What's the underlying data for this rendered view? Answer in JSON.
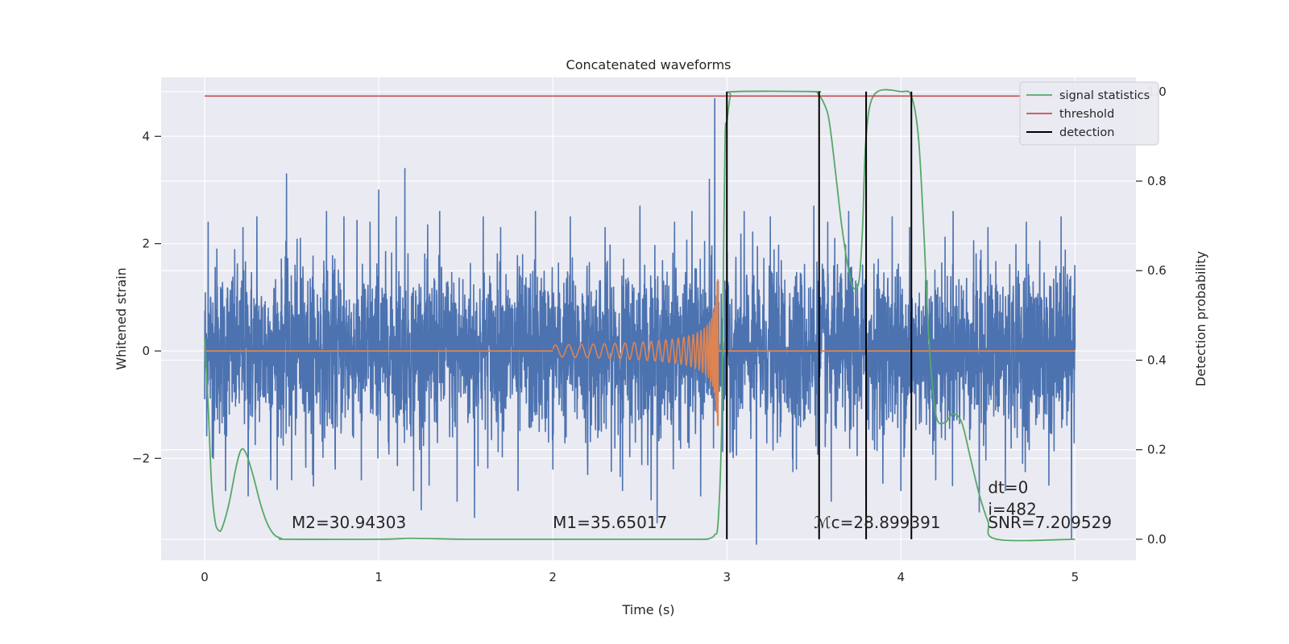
{
  "chart_data": {
    "type": "line",
    "title": "Concatenated waveforms",
    "xlabel": "Time (s)",
    "ylabel": "Whitened strain",
    "y2label": "Detection probability",
    "xlim": [
      -0.25,
      5.35
    ],
    "ylim": [
      -3.9,
      5.1
    ],
    "y2lim": [
      -0.047,
      1.032
    ],
    "x_ticks": [
      0,
      1,
      2,
      3,
      4,
      5
    ],
    "x_tick_labels": [
      "0",
      "1",
      "2",
      "3",
      "4",
      "5"
    ],
    "y_ticks": [
      -2,
      0,
      2,
      4
    ],
    "y_tick_labels": [
      "−2",
      "0",
      "2",
      "4"
    ],
    "y2_ticks": [
      0.0,
      0.2,
      0.4,
      0.6,
      0.8,
      1.0
    ],
    "y2_tick_labels": [
      "0.0",
      "0.2",
      "0.4",
      "0.6",
      "0.8",
      "1.0"
    ],
    "grid": true,
    "legend_placement": "top-right",
    "background": "#eaeaf2",
    "colors": {
      "strain": "#4c72b0",
      "template": "#dd8452",
      "signal_statistics": "#55a868",
      "threshold": "#c44e52",
      "detection": "#000000"
    },
    "series": [
      {
        "name": "signal statistics",
        "axis": "right",
        "x": [
          0.0,
          0.02,
          0.04,
          0.06,
          0.08,
          0.1,
          0.14,
          0.18,
          0.21,
          0.24,
          0.28,
          0.32,
          0.36,
          0.4,
          0.44,
          0.48,
          1.0,
          1.2,
          1.5,
          2.0,
          2.5,
          2.85,
          2.9,
          2.93,
          2.95,
          2.97,
          2.98,
          2.99,
          3.0,
          3.02,
          3.05,
          3.5,
          3.52,
          3.55,
          3.58,
          3.6,
          3.63,
          3.66,
          3.7,
          3.73,
          3.76,
          3.78,
          3.8,
          3.85,
          4.0,
          4.06,
          4.1,
          4.13,
          4.16,
          4.2,
          4.25,
          4.3,
          4.35,
          4.4,
          4.45,
          4.5,
          4.55,
          5.0
        ],
        "y": [
          0.45,
          0.3,
          0.12,
          0.04,
          0.02,
          0.025,
          0.08,
          0.16,
          0.2,
          0.19,
          0.14,
          0.08,
          0.035,
          0.01,
          0.002,
          0.0,
          0.0,
          0.002,
          0.0,
          0.0,
          0.0,
          0.0,
          0.002,
          0.01,
          0.04,
          0.25,
          0.6,
          0.9,
          0.93,
          0.99,
          1.0,
          1.0,
          0.997,
          0.98,
          0.95,
          0.9,
          0.8,
          0.7,
          0.6,
          0.56,
          0.58,
          0.7,
          0.9,
          0.995,
          1.0,
          0.99,
          0.9,
          0.7,
          0.45,
          0.28,
          0.26,
          0.28,
          0.26,
          0.18,
          0.1,
          0.04,
          0.0,
          0.0
        ]
      },
      {
        "name": "threshold",
        "axis": "right",
        "x": [
          0,
          5
        ],
        "y": [
          0.99,
          0.99
        ]
      },
      {
        "name": "detection",
        "axis": "right",
        "type": "vlines",
        "x": [
          3.0,
          3.53,
          3.8,
          4.06
        ],
        "ymin": 0.0,
        "ymax": 1.0
      }
    ],
    "strain_noise": {
      "x_range": [
        0,
        5
      ],
      "typical_band": [
        -1.7,
        1.7
      ],
      "spike_x": [
        0.0,
        0.02,
        0.05,
        0.07,
        0.12,
        0.22,
        0.25,
        0.3,
        0.38,
        0.47,
        0.5,
        0.55,
        0.62,
        0.7,
        0.75,
        0.8,
        0.9,
        0.95,
        1.0,
        1.1,
        1.15,
        1.2,
        1.29,
        1.35,
        1.45,
        1.55,
        1.6,
        1.7,
        1.8,
        1.9,
        2.0,
        2.1,
        2.2,
        2.3,
        2.4,
        2.5,
        2.6,
        2.7,
        2.8,
        2.85,
        2.9,
        2.93,
        3.0,
        3.1,
        3.17,
        3.25,
        3.4,
        3.5,
        3.58,
        3.6,
        3.7,
        3.8,
        3.95,
        4.0,
        4.05,
        4.2,
        4.3,
        4.45,
        4.5,
        4.6,
        4.72,
        4.85,
        4.92,
        4.98
      ],
      "spike_y": [
        -0.9,
        2.4,
        -2.0,
        1.9,
        -2.6,
        2.3,
        -2.7,
        2.5,
        -2.4,
        3.3,
        -2.4,
        2.1,
        -2.3,
        2.6,
        -2.2,
        2.5,
        -2.4,
        2.4,
        3.0,
        2.5,
        3.4,
        -2.6,
        -2.5,
        2.6,
        -2.8,
        -3.1,
        2.5,
        2.3,
        -2.6,
        2.6,
        -2.2,
        2.5,
        -2.3,
        2.3,
        -2.6,
        2.7,
        -3.2,
        2.4,
        2.6,
        -2.7,
        3.2,
        4.7,
        -2.5,
        2.6,
        -3.6,
        2.5,
        -2.2,
        2.7,
        2.4,
        -2.8,
        2.6,
        -2.7,
        2.5,
        -2.6,
        2.3,
        -2.4,
        2.6,
        -3.0,
        2.3,
        -2.6,
        2.4,
        -2.5,
        2.5,
        -3.5
      ]
    },
    "template_chirp": {
      "t_start": 2.0,
      "t_end": 2.95,
      "peak_amplitude": 1.4
    },
    "annotations": [
      {
        "text": "M2=30.94303",
        "x": 0.5,
        "y": -3.3
      },
      {
        "text": "M1=35.65017",
        "x": 2.0,
        "y": -3.3
      },
      {
        "text": "ℳc=28.899391",
        "x": 3.5,
        "y": -3.3
      },
      {
        "text": "dt=0",
        "x": 4.5,
        "y": -2.65
      },
      {
        "text": "i=482",
        "x": 4.5,
        "y": -3.05
      },
      {
        "text": "SNR=7.209529",
        "x": 4.5,
        "y": -3.3
      }
    ]
  }
}
